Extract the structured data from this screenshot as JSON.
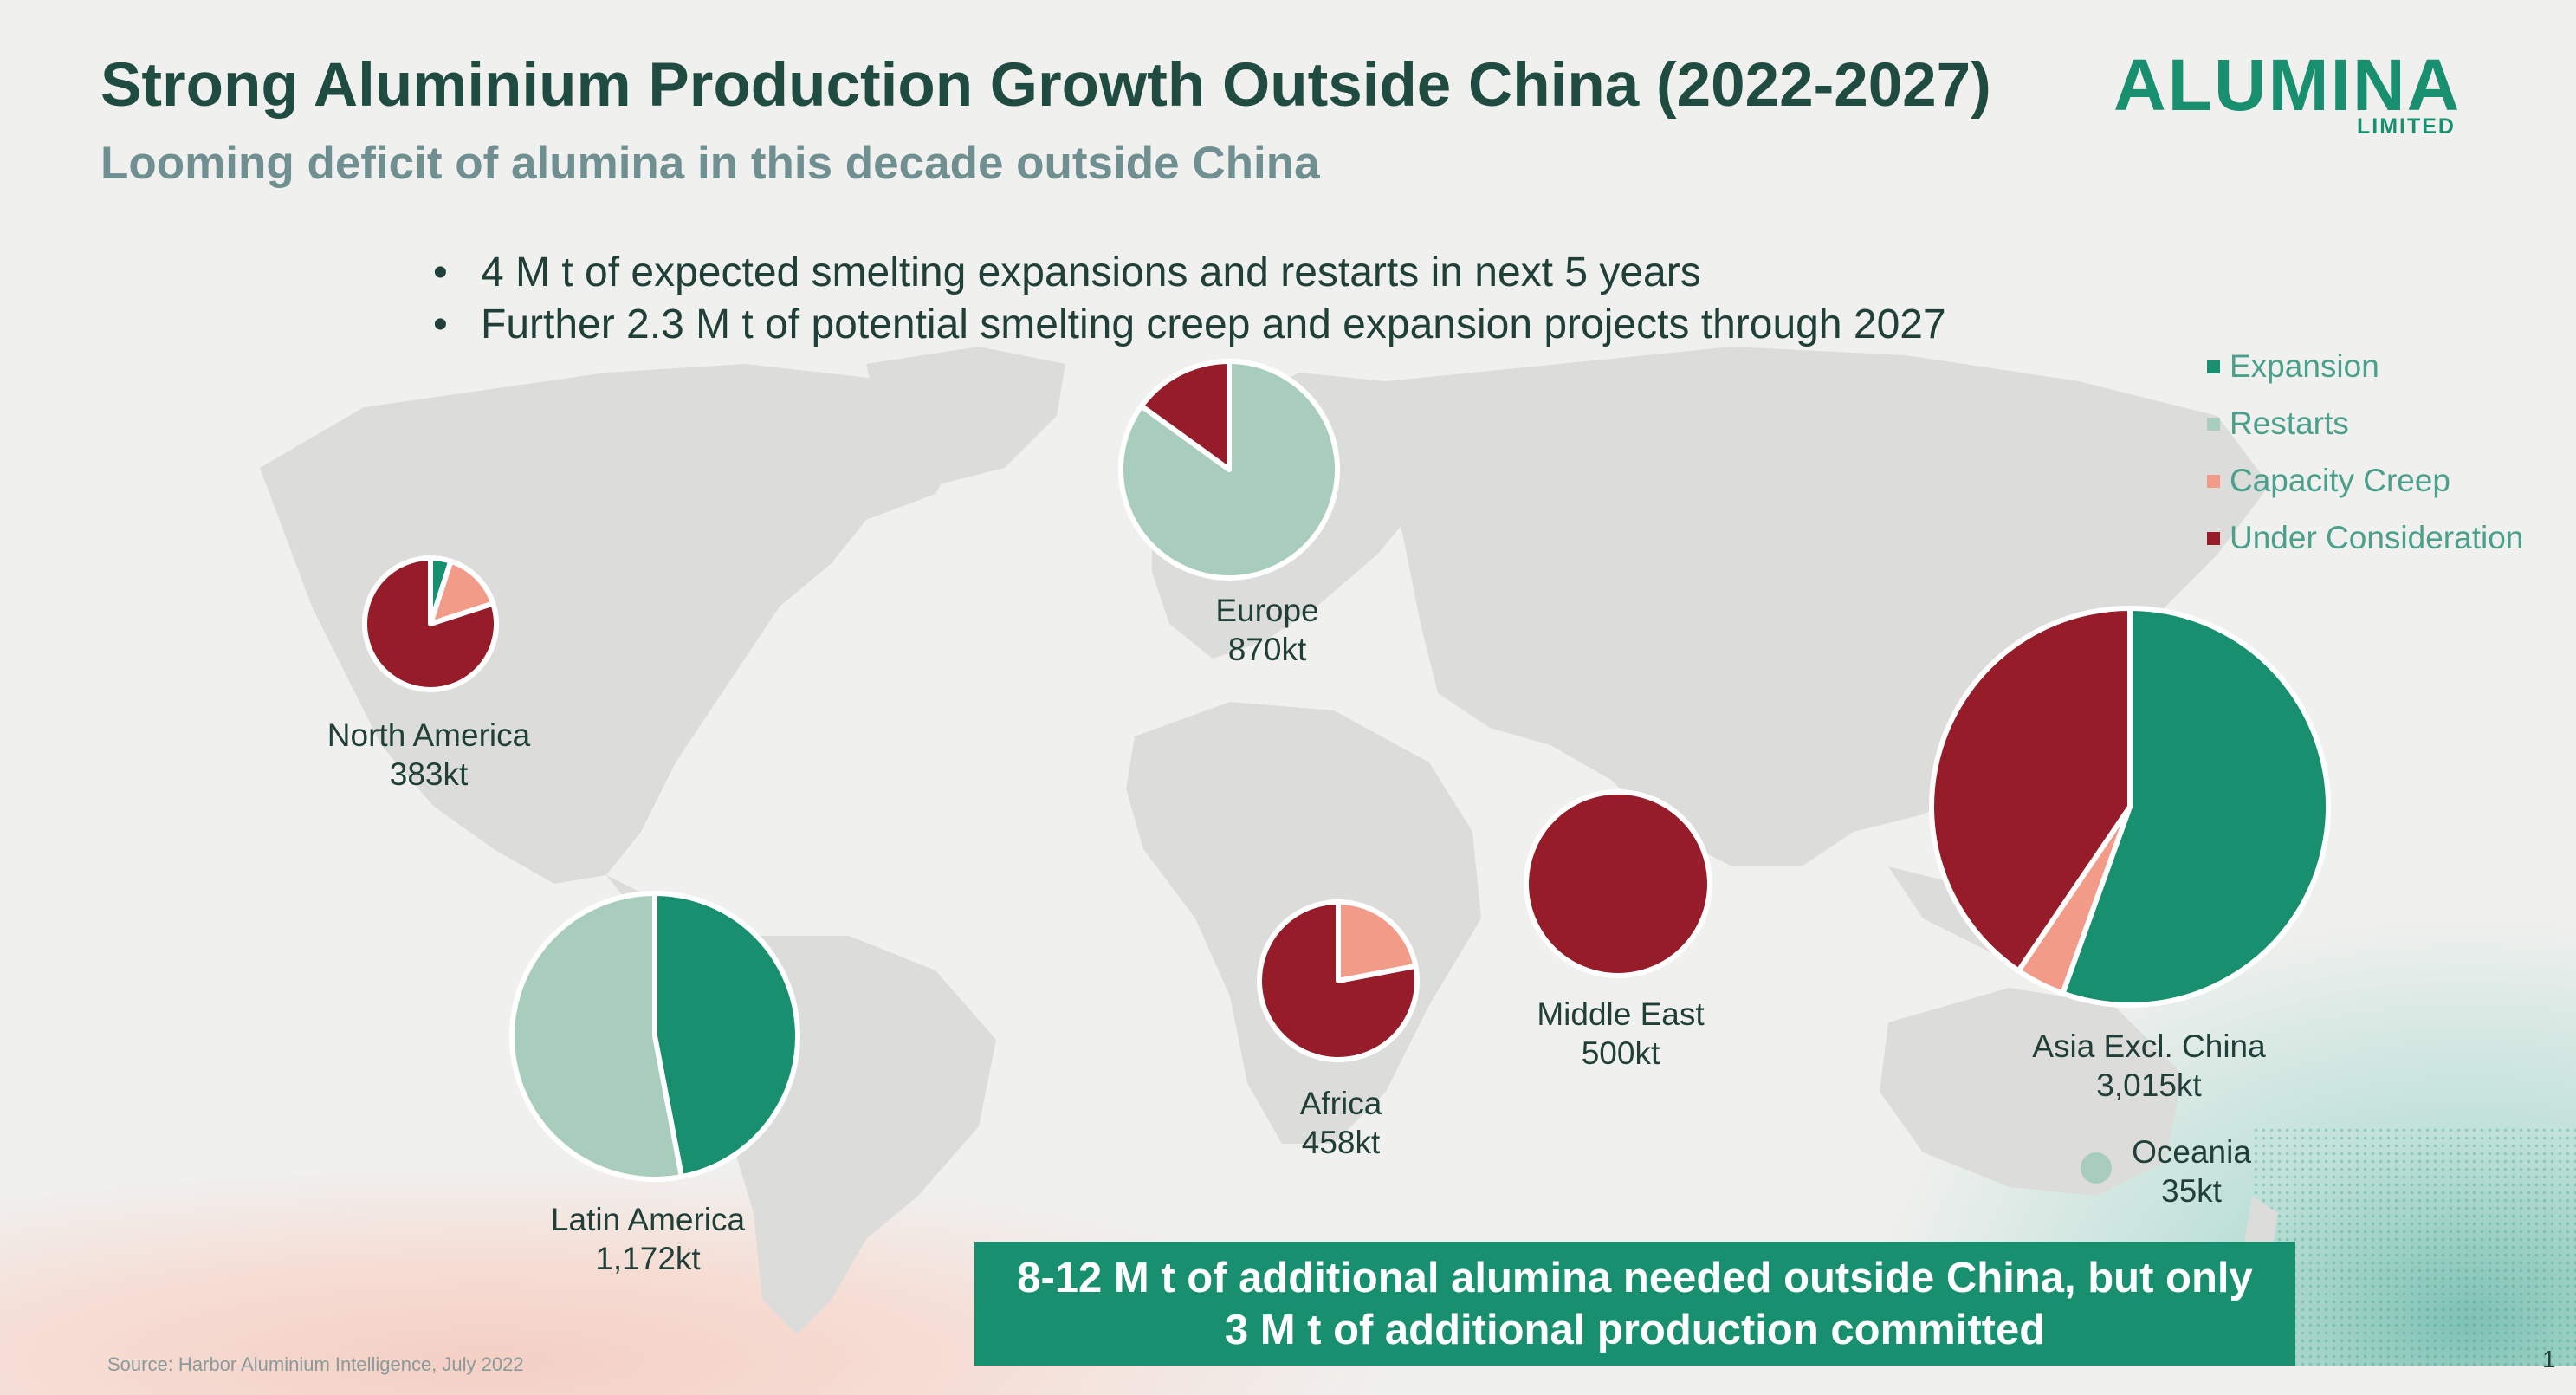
{
  "header": {
    "title": "Strong Aluminium Production Growth Outside China (2022-2027)",
    "subtitle": "Looming deficit of alumina in this decade outside China"
  },
  "logo": {
    "word": "ALUMINA",
    "sub": "LIMITED"
  },
  "bullets": [
    "4 M t of expected smelting expansions and restarts in next 5 years",
    "Further 2.3 M t of potential smelting creep and expansion projects through 2027"
  ],
  "callout": {
    "line1": "8-12 M t of additional alumina needed outside China, but only",
    "line2": "3 M t of additional production committed"
  },
  "footer": {
    "source": "Source: Harbor Aluminium Intelligence, July 2022",
    "page_number": "1"
  },
  "chart_data": {
    "type": "pie",
    "title": "",
    "legend": {
      "placement": "top-right",
      "entries": [
        {
          "name": "Expansion",
          "color": "#188f6e"
        },
        {
          "name": "Restarts",
          "color": "#a9cdbd"
        },
        {
          "name": "Capacity Creep",
          "color": "#f29b88"
        },
        {
          "name": "Under Consideration",
          "color": "#951c28"
        }
      ]
    },
    "pies": [
      {
        "region": "North America",
        "total_label": "383kt",
        "total_kt": 383,
        "values": [
          0.05,
          0,
          0.15,
          0.8
        ]
      },
      {
        "region": "Europe",
        "total_label": "870kt",
        "total_kt": 870,
        "values": [
          0,
          0.85,
          0,
          0.15
        ]
      },
      {
        "region": "Latin America",
        "total_label": "1,172kt",
        "total_kt": 1172,
        "values": [
          0.47,
          0.53,
          0,
          0
        ]
      },
      {
        "region": "Africa",
        "total_label": "458kt",
        "total_kt": 458,
        "values": [
          0,
          0,
          0.22,
          0.78
        ]
      },
      {
        "region": "Middle East",
        "total_label": "500kt",
        "total_kt": 500,
        "values": [
          0,
          0,
          0,
          1
        ]
      },
      {
        "region": "Asia Excl. China",
        "total_label": "3,015kt",
        "total_kt": 3015,
        "values": [
          0.555,
          0,
          0.04,
          0.405
        ]
      },
      {
        "region": "Oceania",
        "total_label": "35kt",
        "total_kt": 35,
        "values": [
          0,
          1,
          0,
          0
        ]
      }
    ]
  }
}
